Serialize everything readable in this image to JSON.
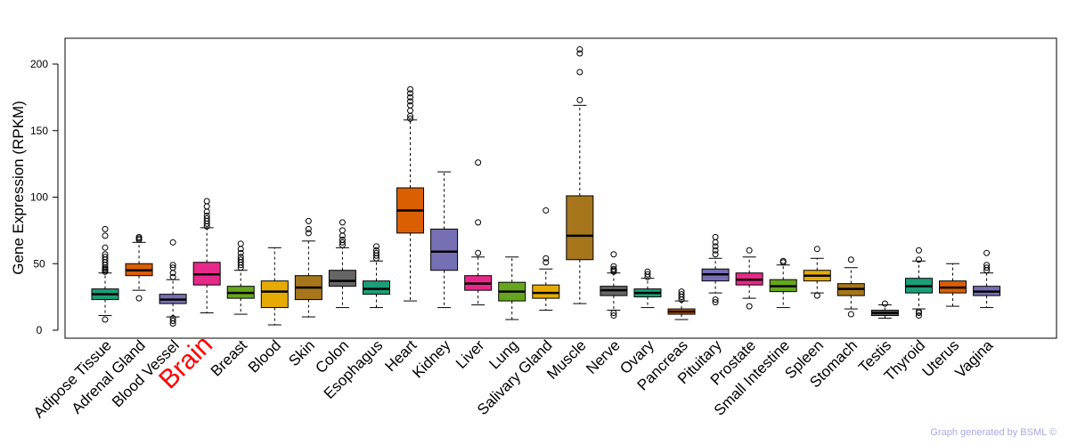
{
  "chart_data": {
    "type": "boxplot",
    "title": "",
    "xlabel": "",
    "ylabel": "Gene Expression (RPKM)",
    "ylim": [
      -3,
      220
    ],
    "yticks": [
      0,
      50,
      100,
      150,
      200
    ],
    "highlight": {
      "category": "Brain",
      "color": "#ff0000"
    },
    "credit": "Graph generated by BSML ©",
    "series": [
      {
        "name": "Adipose Tissue",
        "color": "#1b9e77",
        "stats": [
          11,
          23,
          27,
          31,
          43
        ],
        "outliers": [
          8,
          44,
          45,
          46,
          47,
          49,
          51,
          53,
          55,
          57,
          62,
          71,
          76
        ]
      },
      {
        "name": "Adrenal Gland",
        "color": "#d95f02",
        "stats": [
          30,
          41,
          45,
          50,
          66
        ],
        "outliers": [
          24,
          68,
          69,
          70
        ]
      },
      {
        "name": "Blood Vessel",
        "color": "#7570b3",
        "stats": [
          10,
          20,
          23,
          27,
          38
        ],
        "outliers": [
          5,
          7,
          9,
          40,
          43,
          47,
          49,
          66
        ]
      },
      {
        "name": "Brain",
        "color": "#e7298a",
        "stats": [
          13,
          34,
          42,
          51,
          77
        ],
        "outliers": [
          78,
          80,
          82,
          84,
          86,
          89,
          93,
          97
        ]
      },
      {
        "name": "Breast",
        "color": "#66a61e",
        "stats": [
          12,
          24,
          28,
          33,
          45
        ],
        "outliers": [
          47,
          49,
          51,
          53,
          55,
          58,
          61,
          65
        ]
      },
      {
        "name": "Blood",
        "color": "#e6ab02",
        "stats": [
          4,
          17,
          29,
          37,
          62
        ],
        "outliers": []
      },
      {
        "name": "Skin",
        "color": "#a6761d",
        "stats": [
          10,
          23,
          32,
          41,
          67
        ],
        "outliers": [
          73,
          76,
          82
        ]
      },
      {
        "name": "Colon",
        "color": "#666666",
        "stats": [
          17,
          33,
          37,
          45,
          62
        ],
        "outliers": [
          64,
          66,
          68,
          71,
          75,
          81
        ]
      },
      {
        "name": "Esophagus",
        "color": "#1b9e77",
        "stats": [
          17,
          27,
          31,
          37,
          52
        ],
        "outliers": [
          54,
          56,
          58,
          60,
          63
        ]
      },
      {
        "name": "Heart",
        "color": "#d95f02",
        "stats": [
          22,
          73,
          90,
          107,
          158
        ],
        "outliers": [
          159,
          161,
          165,
          169,
          172,
          175,
          178,
          181
        ]
      },
      {
        "name": "Kidney",
        "color": "#7570b3",
        "stats": [
          17,
          45,
          59,
          76,
          119
        ],
        "outliers": []
      },
      {
        "name": "Liver",
        "color": "#e7298a",
        "stats": [
          19,
          30,
          35,
          41,
          55
        ],
        "outliers": [
          58,
          81,
          126
        ]
      },
      {
        "name": "Lung",
        "color": "#66a61e",
        "stats": [
          8,
          22,
          29,
          36,
          55
        ],
        "outliers": []
      },
      {
        "name": "Salivary Gland",
        "color": "#e6ab02",
        "stats": [
          15,
          24,
          28,
          34,
          46
        ],
        "outliers": [
          51,
          54,
          90
        ]
      },
      {
        "name": "Muscle",
        "color": "#a6761d",
        "stats": [
          20,
          53,
          71,
          101,
          169
        ],
        "outliers": [
          173,
          194,
          208,
          211
        ]
      },
      {
        "name": "Nerve",
        "color": "#666666",
        "stats": [
          15,
          26,
          30,
          33,
          43
        ],
        "outliers": [
          11,
          13,
          44,
          45,
          46,
          48,
          57
        ]
      },
      {
        "name": "Ovary",
        "color": "#1b9e77",
        "stats": [
          17,
          25,
          28,
          31,
          39
        ],
        "outliers": [
          40,
          42,
          44
        ]
      },
      {
        "name": "Pancreas",
        "color": "#d95f02",
        "stats": [
          8,
          12,
          14,
          16,
          22
        ],
        "outliers": [
          23,
          25,
          27,
          29
        ]
      },
      {
        "name": "Pituitary",
        "color": "#7570b3",
        "stats": [
          28,
          37,
          42,
          46,
          54
        ],
        "outliers": [
          21,
          23,
          57,
          60,
          63,
          66,
          70
        ]
      },
      {
        "name": "Prostate",
        "color": "#e7298a",
        "stats": [
          24,
          34,
          38,
          43,
          55
        ],
        "outliers": [
          18,
          60
        ]
      },
      {
        "name": "Small Intestine",
        "color": "#66a61e",
        "stats": [
          17,
          29,
          33,
          38,
          49
        ],
        "outliers": [
          51,
          52
        ]
      },
      {
        "name": "Spleen",
        "color": "#e6ab02",
        "stats": [
          28,
          37,
          41,
          45,
          54
        ],
        "outliers": [
          26,
          61
        ]
      },
      {
        "name": "Stomach",
        "color": "#a6761d",
        "stats": [
          16,
          26,
          31,
          35,
          47
        ],
        "outliers": [
          12,
          53
        ]
      },
      {
        "name": "Testis",
        "color": "#666666",
        "stats": [
          9,
          11,
          13,
          15,
          19
        ],
        "outliers": [
          20
        ]
      },
      {
        "name": "Thyroid",
        "color": "#1b9e77",
        "stats": [
          16,
          28,
          33,
          39,
          52
        ],
        "outliers": [
          11,
          13,
          14,
          53,
          60
        ]
      },
      {
        "name": "Uterus",
        "color": "#d95f02",
        "stats": [
          18,
          28,
          32,
          37,
          50
        ],
        "outliers": []
      },
      {
        "name": "Vagina",
        "color": "#7570b3",
        "stats": [
          17,
          26,
          29,
          33,
          43
        ],
        "outliers": [
          45,
          47,
          49,
          58
        ]
      }
    ]
  }
}
